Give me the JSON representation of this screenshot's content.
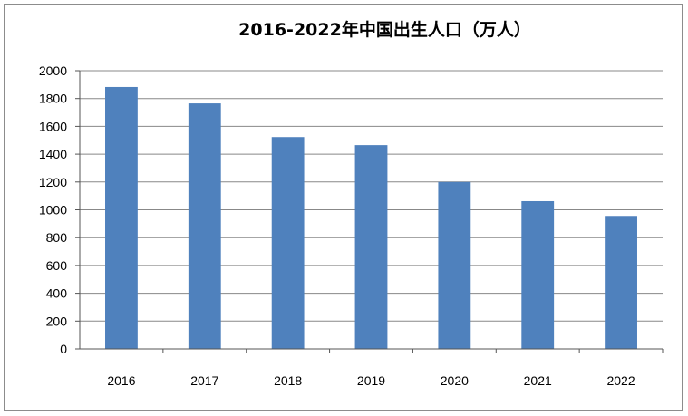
{
  "chart_data": {
    "type": "bar",
    "title": "2016-2022年中国出生人口（万人）",
    "categories": [
      "2016",
      "2017",
      "2018",
      "2019",
      "2020",
      "2021",
      "2022"
    ],
    "values": [
      1883,
      1765,
      1523,
      1465,
      1200,
      1062,
      956
    ],
    "ylim": [
      0,
      2000
    ],
    "yticks": [
      0,
      200,
      400,
      600,
      800,
      1000,
      1200,
      1400,
      1600,
      1800,
      2000
    ],
    "xlabel": "",
    "ylabel": "",
    "grid": true,
    "legend": "none",
    "bar_color": "#4f81bd",
    "grid_color": "#888888"
  }
}
